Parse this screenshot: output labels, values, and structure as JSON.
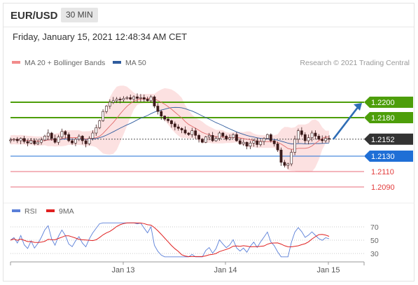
{
  "header": {
    "symbol": "EUR/USD",
    "timeframe": "30 MIN",
    "datetime": "Friday, January 15, 2021 12:48:34 AM CET"
  },
  "chart_data": [
    {
      "type": "line",
      "panel": "price",
      "legend": [
        {
          "label": "MA 20 + Bollinger Bands",
          "color": "#f28b8b"
        },
        {
          "label": "MA 50",
          "color": "#2f5c9e"
        }
      ],
      "credit": "Research © 2021 Trading Central",
      "ylim": [
        2105,
        2225
      ],
      "close_series": [
        2151,
        2152,
        2150,
        2153,
        2149,
        2147,
        2150,
        2146,
        2148,
        2151,
        2156,
        2160,
        2153,
        2148,
        2155,
        2162,
        2158,
        2150,
        2147,
        2152,
        2156,
        2150,
        2146,
        2153,
        2160,
        2167,
        2176,
        2188,
        2195,
        2200,
        2202,
        2204,
        2203,
        2205,
        2206,
        2204,
        2207,
        2205,
        2206,
        2204,
        2202,
        2207,
        2195,
        2188,
        2182,
        2178,
        2176,
        2172,
        2168,
        2166,
        2164,
        2160,
        2158,
        2163,
        2157,
        2152,
        2148,
        2155,
        2157,
        2150,
        2153,
        2160,
        2156,
        2152,
        2154,
        2158,
        2150,
        2146,
        2148,
        2143,
        2147,
        2150,
        2145,
        2149,
        2153,
        2158,
        2150,
        2146,
        2138,
        2122,
        2118,
        2120,
        2135,
        2152,
        2163,
        2158,
        2150,
        2154,
        2160,
        2156,
        2152,
        2150,
        2153,
        2152
      ],
      "series": [
        {
          "name": "MA 20",
          "color": "#f28b8b"
        },
        {
          "name": "MA 50",
          "color": "#2f5c9e"
        }
      ],
      "levels": [
        {
          "value": "1.2200",
          "price": 2200,
          "type": "resistance",
          "color": "#4d9e0a",
          "label_bg": "#4d9e0a"
        },
        {
          "value": "1.2180",
          "price": 2180,
          "type": "resistance",
          "color": "#4d9e0a",
          "label_bg": "#4d9e0a"
        },
        {
          "value": "1.2152",
          "price": 2152,
          "type": "last",
          "color": "#333333",
          "label_bg": "#333333"
        },
        {
          "value": "1.2130",
          "price": 2130,
          "type": "pivot",
          "color": "#1f6fd6",
          "label_bg": "#1f6fd6"
        },
        {
          "value": "1.2110",
          "price": 2110,
          "type": "support",
          "color": "#e86b7a",
          "label_bg": ""
        },
        {
          "value": "1.2090",
          "price": 2090,
          "type": "support",
          "color": "#e86b7a",
          "label_bg": ""
        }
      ],
      "forecast": {
        "from_price": 2152,
        "to_price": 2200,
        "color": "#2f6db5"
      }
    },
    {
      "type": "line",
      "panel": "rsi",
      "legend": [
        {
          "label": "RSI",
          "color": "#5a7fd8"
        },
        {
          "label": "9MA",
          "color": "#e02020"
        }
      ],
      "ylim": [
        20,
        80
      ],
      "yticks": [
        "70",
        "50",
        "30"
      ],
      "xticks": [
        "Jan 13",
        "Jan 14",
        "Jan 15"
      ],
      "series": [
        {
          "name": "RSI",
          "color": "#5a7fd8"
        },
        {
          "name": "9MA",
          "color": "#e02020"
        }
      ]
    }
  ]
}
